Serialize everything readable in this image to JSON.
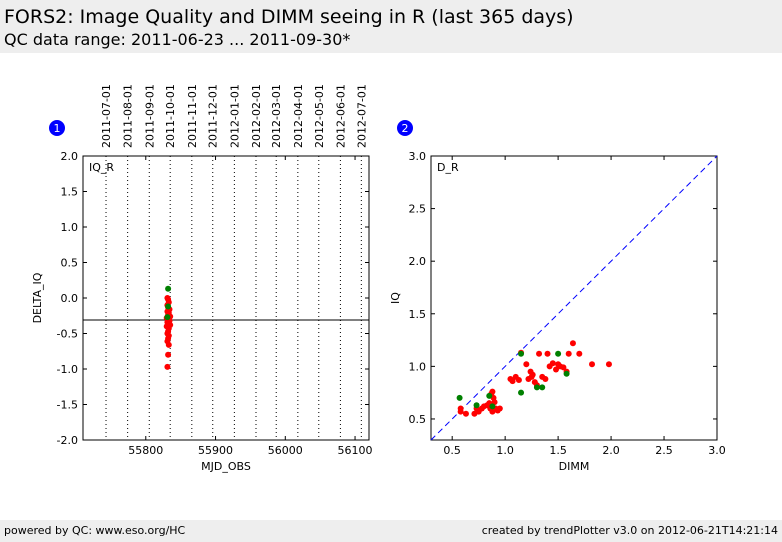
{
  "header": {
    "title": "FORS2: Image Quality and DIMM seeing in R (last 365 days)",
    "subtitle": "QC data range: 2011-06-23 ... 2011-09-30*"
  },
  "footer": {
    "left": "powered by QC: www.eso.org/HC",
    "right": "created by trendPlotter v3.0 on 2012-06-21T14:21:14"
  },
  "colors": {
    "red": "#ff0000",
    "green": "#008000",
    "refline": "#0000ff",
    "badge": "#0000ff"
  },
  "chart_data": [
    {
      "type": "scatter",
      "badge": "1",
      "panel_label": "IQ_R",
      "xlabel": "MJD_OBS",
      "ylabel": "DELTA_IQ",
      "xlim": [
        55710,
        56120
      ],
      "ylim": [
        -2.0,
        2.0
      ],
      "x_ticks": [
        55800,
        55900,
        56000,
        56100
      ],
      "y_ticks": [
        -2.0,
        -1.5,
        -1.0,
        -0.5,
        0.0,
        0.5,
        1.0,
        1.5,
        2.0
      ],
      "date_ticks": [
        {
          "label": "2011-07-01",
          "mjd": 55743
        },
        {
          "label": "2011-08-01",
          "mjd": 55774
        },
        {
          "label": "2011-09-01",
          "mjd": 55805
        },
        {
          "label": "2011-10-01",
          "mjd": 55835
        },
        {
          "label": "2011-11-01",
          "mjd": 55866
        },
        {
          "label": "2011-12-01",
          "mjd": 55896
        },
        {
          "label": "2012-01-01",
          "mjd": 55927
        },
        {
          "label": "2012-02-01",
          "mjd": 55958
        },
        {
          "label": "2012-03-01",
          "mjd": 55987
        },
        {
          "label": "2012-04-01",
          "mjd": 56018
        },
        {
          "label": "2012-05-01",
          "mjd": 56048
        },
        {
          "label": "2012-06-01",
          "mjd": 56079
        },
        {
          "label": "2012-07-01",
          "mjd": 56109
        }
      ],
      "hline": -0.31,
      "series": [
        {
          "color": "red",
          "points": [
            [
              55831,
              0.0
            ],
            [
              55832,
              -0.02
            ],
            [
              55833,
              -0.06
            ],
            [
              55831,
              -0.1
            ],
            [
              55832,
              -0.13
            ],
            [
              55834,
              -0.16
            ],
            [
              55831,
              -0.19
            ],
            [
              55833,
              -0.21
            ],
            [
              55832,
              -0.24
            ],
            [
              55835,
              -0.26
            ],
            [
              55830,
              -0.28
            ],
            [
              55833,
              -0.3
            ],
            [
              55834,
              -0.32
            ],
            [
              55831,
              -0.34
            ],
            [
              55832,
              -0.36
            ],
            [
              55835,
              -0.38
            ],
            [
              55830,
              -0.4
            ],
            [
              55833,
              -0.43
            ],
            [
              55832,
              -0.47
            ],
            [
              55831,
              -0.5
            ],
            [
              55833,
              -0.53
            ],
            [
              55832,
              -0.57
            ],
            [
              55831,
              -0.61
            ],
            [
              55833,
              -0.66
            ],
            [
              55832,
              -0.8
            ],
            [
              55831,
              -0.97
            ]
          ]
        },
        {
          "color": "green",
          "points": [
            [
              55832,
              0.13
            ],
            [
              55832,
              -0.12
            ],
            [
              55831,
              -0.27
            ]
          ]
        }
      ]
    },
    {
      "type": "scatter",
      "badge": "2",
      "panel_label": "D_R",
      "xlabel": "DIMM",
      "ylabel": "IQ",
      "xlim": [
        0.3,
        3.0
      ],
      "ylim": [
        0.3,
        3.0
      ],
      "x_ticks": [
        0.5,
        1.0,
        1.5,
        2.0,
        2.5,
        3.0
      ],
      "y_ticks": [
        0.5,
        1.0,
        1.5,
        2.0,
        2.5,
        3.0
      ],
      "diagonal": true,
      "series": [
        {
          "color": "red",
          "points": [
            [
              0.58,
              0.6
            ],
            [
              0.58,
              0.57
            ],
            [
              0.63,
              0.55
            ],
            [
              0.71,
              0.55
            ],
            [
              0.73,
              0.6
            ],
            [
              0.75,
              0.57
            ],
            [
              0.78,
              0.6
            ],
            [
              0.8,
              0.62
            ],
            [
              0.83,
              0.63
            ],
            [
              0.85,
              0.65
            ],
            [
              0.86,
              0.6
            ],
            [
              0.88,
              0.57
            ],
            [
              0.89,
              0.7
            ],
            [
              0.9,
              0.66
            ],
            [
              0.91,
              0.6
            ],
            [
              0.93,
              0.58
            ],
            [
              0.95,
              0.6
            ],
            [
              0.88,
              0.76
            ],
            [
              0.87,
              0.74
            ],
            [
              1.05,
              0.88
            ],
            [
              1.07,
              0.86
            ],
            [
              1.1,
              0.9
            ],
            [
              1.13,
              0.87
            ],
            [
              1.15,
              1.13
            ],
            [
              1.2,
              1.02
            ],
            [
              1.22,
              0.88
            ],
            [
              1.24,
              0.95
            ],
            [
              1.25,
              0.9
            ],
            [
              1.26,
              0.92
            ],
            [
              1.28,
              0.85
            ],
            [
              1.3,
              0.82
            ],
            [
              1.32,
              1.12
            ],
            [
              1.35,
              0.9
            ],
            [
              1.38,
              0.88
            ],
            [
              1.4,
              1.12
            ],
            [
              1.42,
              1.0
            ],
            [
              1.45,
              1.03
            ],
            [
              1.48,
              0.97
            ],
            [
              1.5,
              1.02
            ],
            [
              1.52,
              1.0
            ],
            [
              1.55,
              0.99
            ],
            [
              1.58,
              0.95
            ],
            [
              1.6,
              1.12
            ],
            [
              1.64,
              1.22
            ],
            [
              1.7,
              1.12
            ],
            [
              1.82,
              1.02
            ],
            [
              1.98,
              1.02
            ]
          ]
        },
        {
          "color": "green",
          "points": [
            [
              0.57,
              0.7
            ],
            [
              0.73,
              0.63
            ],
            [
              0.85,
              0.72
            ],
            [
              0.88,
              0.62
            ],
            [
              1.15,
              0.75
            ],
            [
              1.15,
              1.12
            ],
            [
              1.3,
              0.8
            ],
            [
              1.35,
              0.8
            ],
            [
              1.5,
              1.12
            ],
            [
              1.58,
              0.93
            ]
          ]
        }
      ]
    }
  ]
}
